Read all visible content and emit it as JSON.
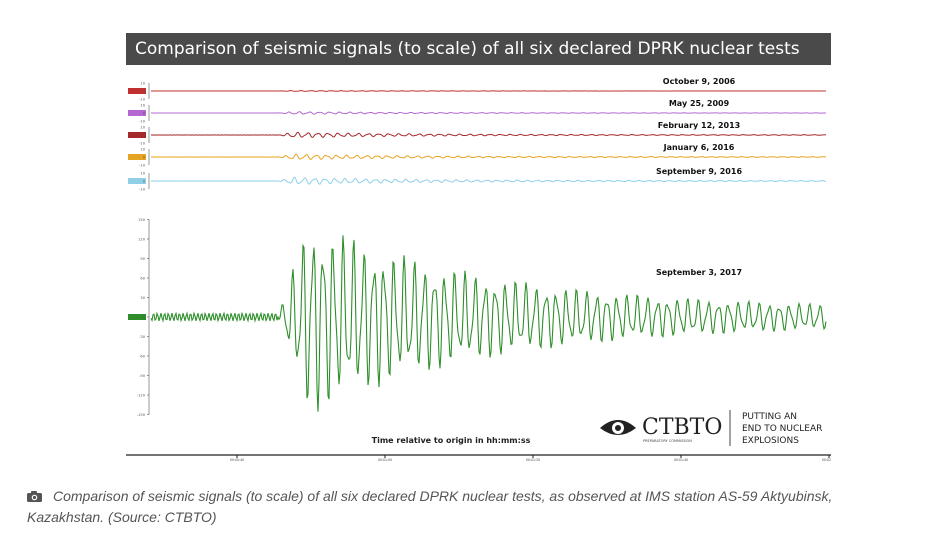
{
  "figure": {
    "title": "Comparison of seismic signals (to scale) of all six declared DPRK nuclear tests",
    "xlabel": "Time relative to origin in hh:mm:ss",
    "colors": {
      "trace_2006": "#c0302e",
      "trace_2009": "#b467d0",
      "trace_2013": "#a5282a",
      "trace_2016a": "#e5a421",
      "trace_2016b": "#8fcfe8",
      "trace_2017": "#2e8f2a",
      "title_bg": "#4a4a4a"
    }
  },
  "chart_data": {
    "type": "line",
    "title": "Comparison of seismic signals (to scale) of all six declared DPRK nuclear tests",
    "xlabel": "Time relative to origin in hh:mm:ss",
    "x_tick_labels": [
      "00:00:40",
      "00:01:00",
      "00:01:20",
      "00:01:40",
      "00:02:00"
    ],
    "series": [
      {
        "name": "October 9, 2006",
        "peak_amplitude": 1
      },
      {
        "name": "May 25, 2009",
        "peak_amplitude": 3
      },
      {
        "name": "February 12, 2013",
        "peak_amplitude": 6
      },
      {
        "name": "January 6, 2016",
        "peak_amplitude": 6
      },
      {
        "name": "September 9, 2016",
        "peak_amplitude": 8
      },
      {
        "name": "September 3, 2017",
        "peak_amplitude": 150
      }
    ],
    "small_trace_y_ticks": [
      "10",
      "0",
      "-10"
    ],
    "large_trace_y_ticks": [
      "150",
      "120",
      "90",
      "60",
      "30",
      "0",
      "-30",
      "-60",
      "-90",
      "-120",
      "-150"
    ],
    "grid": false
  },
  "logo": {
    "name": "CTBTO",
    "subtitle": "PREPARATORY COMMISSION",
    "tagline_line1": "PUTTING AN",
    "tagline_line2": "END TO NUCLEAR",
    "tagline_line3": "EXPLOSIONS"
  },
  "caption": {
    "icon": "camera-icon",
    "text": "Comparison of seismic signals (to scale) of all six declared DPRK nuclear tests, as observed at IMS station AS-59 Aktyubinsk, Kazakhstan. (Source: CTBTO)"
  }
}
